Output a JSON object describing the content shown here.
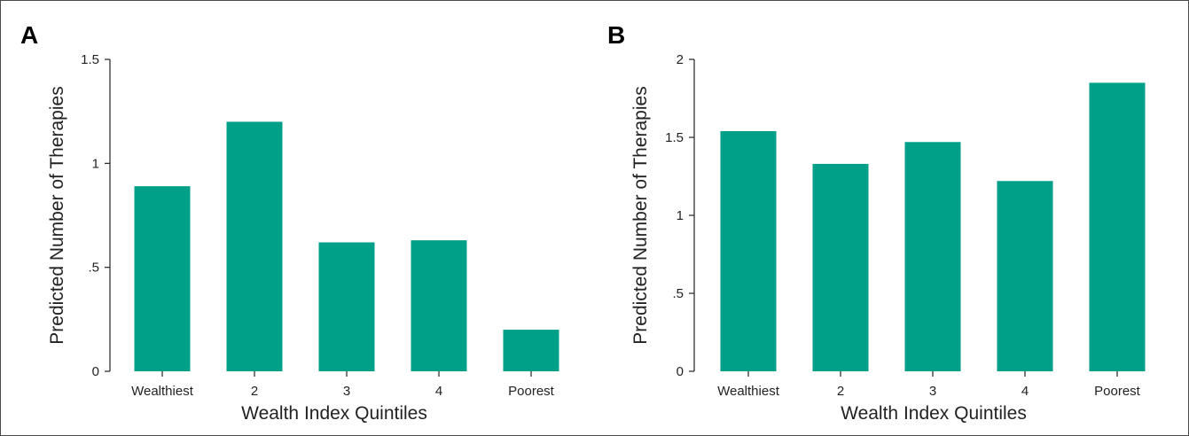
{
  "chart_data": [
    {
      "panel": "A",
      "type": "bar",
      "categories": [
        "Wealthiest",
        "2",
        "3",
        "4",
        "Poorest"
      ],
      "values": [
        0.89,
        1.2,
        0.62,
        0.63,
        0.2
      ],
      "xlabel": "Wealth Index Quintiles",
      "ylabel": "Predicted Number of Therapies",
      "ylim": [
        0,
        1.5
      ],
      "yticks": [
        0,
        0.5,
        1,
        1.5
      ],
      "ytick_labels": [
        "0",
        ".5",
        "1",
        "1.5"
      ],
      "bar_color": "#00a088",
      "grid": false
    },
    {
      "panel": "B",
      "type": "bar",
      "categories": [
        "Wealthiest",
        "2",
        "3",
        "4",
        "Poorest"
      ],
      "values": [
        1.54,
        1.33,
        1.47,
        1.22,
        1.85
      ],
      "xlabel": "Wealth Index Quintiles",
      "ylabel": "Predicted Number of Therapies",
      "ylim": [
        0,
        2
      ],
      "yticks": [
        0,
        0.5,
        1,
        1.5,
        2
      ],
      "ytick_labels": [
        "0",
        ".5",
        "1",
        "1.5",
        "2"
      ],
      "bar_color": "#00a088",
      "grid": false
    }
  ]
}
